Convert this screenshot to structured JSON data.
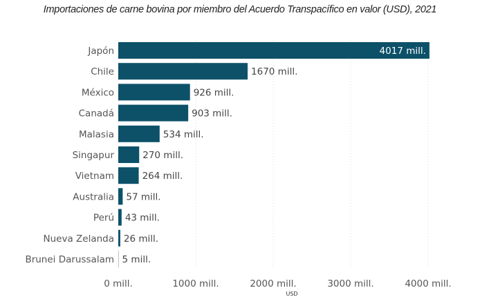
{
  "chart_data": {
    "type": "bar",
    "orientation": "horizontal",
    "title": "Importaciones de carne bovina por miembro del Acuerdo Transpacífico en valor (USD), 2021",
    "xlabel": "USD",
    "ylabel": "",
    "categories": [
      "Japón",
      "Chile",
      "México",
      "Canadá",
      "Malasia",
      "Singapur",
      "Vietnam",
      "Australia",
      "Perú",
      "Nueva Zelanda",
      "Brunei Darussalam"
    ],
    "values": [
      4017,
      1670,
      926,
      903,
      534,
      270,
      264,
      57,
      43,
      26,
      5
    ],
    "data_labels": [
      "4017 mill.",
      "1670 mill.",
      "926 mill.",
      "903 mill.",
      "534 mill.",
      "270 mill.",
      "264 mill.",
      "57 mill.",
      "43 mill.",
      "26 mill.",
      "5 mill."
    ],
    "xlim": [
      0,
      4000
    ],
    "x_ticks": [
      0,
      1000,
      2000,
      3000,
      4000
    ],
    "x_tick_labels": [
      "0 mill.",
      "1000 mill.",
      "2000 mill.",
      "3000 mill.",
      "4000 mill."
    ],
    "grid": "vertical dotted",
    "bar_color": "#0d5169",
    "legend": "none"
  }
}
